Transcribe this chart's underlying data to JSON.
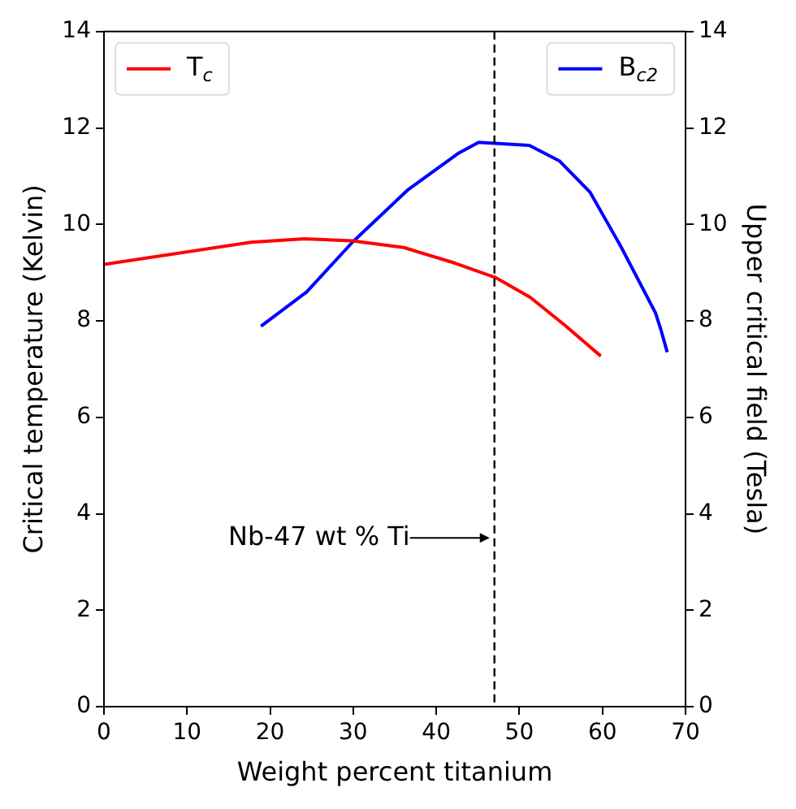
{
  "chart_data": {
    "type": "line",
    "xlabel": "Weight percent titanium",
    "ylabel": "Critical temperature (Kelvin)",
    "y2label": "Upper critical field (Tesla)",
    "series": [
      {
        "name": "T$_{c}$",
        "color": "#ff0000",
        "x": [
          0,
          17.7,
          24.1,
          29.9,
          36.1,
          42.2,
          47.1,
          51.3,
          55.6,
          59.8
        ],
        "values": [
          9.17,
          9.63,
          9.7,
          9.66,
          9.52,
          9.2,
          8.9,
          8.49,
          7.89,
          7.27
        ]
      },
      {
        "name": "B$_{c2}$",
        "color": "#0000ff",
        "axis": "y2",
        "x": [
          18.9,
          24.4,
          29.9,
          36.6,
          42.7,
          45.1,
          51.2,
          54.8,
          58.5,
          62.1,
          66.4,
          67.0,
          67.8
        ],
        "values": [
          7.89,
          8.6,
          9.63,
          10.72,
          11.48,
          11.7,
          11.64,
          11.32,
          10.67,
          9.58,
          8.16,
          7.84,
          7.35
        ]
      }
    ],
    "xlim": [
      0,
      70
    ],
    "xticks": [
      0,
      10,
      20,
      30,
      40,
      50,
      60,
      70
    ],
    "ylim": [
      0,
      14
    ],
    "yticks": [
      0,
      2,
      4,
      6,
      8,
      10,
      12,
      14
    ],
    "y2lim": [
      0,
      14
    ],
    "y2ticks": [
      0,
      2,
      4,
      6,
      8,
      10,
      12,
      14
    ],
    "ref_lines": [
      {
        "axis": "x",
        "value": 47,
        "color": "#000000",
        "line_style": "dashed"
      }
    ],
    "annotations": [
      {
        "text": "Nb-47 wt % Ti",
        "x": 47,
        "y": 3.5
      }
    ],
    "legend": "top",
    "grid": false,
    "marker": "none",
    "line_style": "solid"
  }
}
